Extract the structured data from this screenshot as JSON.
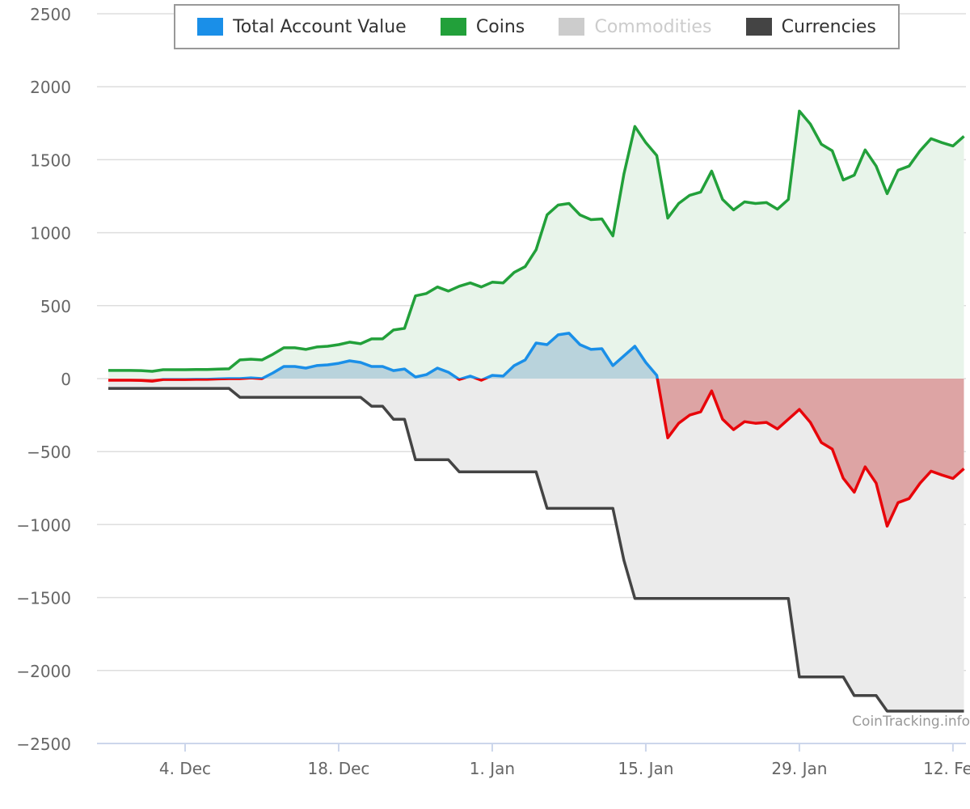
{
  "chart_data": {
    "type": "area",
    "title": "",
    "xlabel": "",
    "ylabel": "",
    "ylim": [
      -2500,
      2500
    ],
    "yticks": [
      2500,
      2000,
      1500,
      1000,
      500,
      0,
      -500,
      -1000,
      -1500,
      -2000,
      -2500
    ],
    "ytick_labels": [
      "2500",
      "2000",
      "1500",
      "1000",
      "500",
      "0",
      "−500",
      "−1000",
      "−1500",
      "−2000",
      "−2500"
    ],
    "x_start": "27 Nov",
    "x_interval_days": 1,
    "xticks": [
      {
        "label": "4. Dec",
        "day": 7
      },
      {
        "label": "18. Dec",
        "day": 21
      },
      {
        "label": "1. Jan",
        "day": 35
      },
      {
        "label": "15. Jan",
        "day": 49
      },
      {
        "label": "29. Jan",
        "day": 63
      },
      {
        "label": "12. Feb",
        "day": 77
      }
    ],
    "grid": true,
    "legend_position": "top",
    "series": [
      {
        "name": "Total Account Value",
        "color": "#1a8fe8",
        "negative_color": "#e8050a",
        "visible": true,
        "values": [
          -11,
          -11,
          -11,
          -12,
          -17,
          -6,
          -6,
          -6,
          -5,
          -5,
          -2,
          0,
          0,
          5,
          0,
          39,
          83,
          83,
          72,
          89,
          94,
          105,
          122,
          111,
          83,
          83,
          55,
          66,
          11,
          27,
          72,
          44,
          -6,
          17,
          -11,
          22,
          17,
          89,
          128,
          244,
          233,
          300,
          311,
          233,
          200,
          205,
          89,
          156,
          222,
          111,
          22,
          -406,
          -306,
          -250,
          -228,
          -84,
          -278,
          -350,
          -295,
          -306,
          -300,
          -345,
          -278,
          -211,
          -300,
          -438,
          -483,
          -683,
          -778,
          -605,
          -716,
          -1011,
          -850,
          -822,
          -717,
          -634,
          -661,
          -684,
          -617
        ]
      },
      {
        "name": "Coins",
        "color": "#22a03a",
        "visible": true,
        "values": [
          56,
          56,
          56,
          55,
          50,
          61,
          61,
          61,
          62,
          62,
          65,
          67,
          128,
          133,
          128,
          167,
          211,
          211,
          200,
          217,
          222,
          233,
          250,
          239,
          272,
          272,
          333,
          344,
          567,
          583,
          628,
          600,
          633,
          656,
          628,
          661,
          656,
          728,
          767,
          883,
          1122,
          1189,
          1200,
          1122,
          1089,
          1094,
          978,
          1400,
          1728,
          1617,
          1528,
          1100,
          1200,
          1256,
          1278,
          1422,
          1228,
          1156,
          1211,
          1200,
          1206,
          1161,
          1228,
          1833,
          1744,
          1606,
          1561,
          1361,
          1394,
          1567,
          1456,
          1267,
          1428,
          1456,
          1561,
          1644,
          1617,
          1594,
          1661
        ]
      },
      {
        "name": "Commodities",
        "color": "#cccccc",
        "visible": false,
        "values": []
      },
      {
        "name": "Currencies",
        "color": "#444444",
        "visible": true,
        "values": [
          -67,
          -67,
          -67,
          -67,
          -67,
          -67,
          -67,
          -67,
          -67,
          -67,
          -67,
          -67,
          -128,
          -128,
          -128,
          -128,
          -128,
          -128,
          -128,
          -128,
          -128,
          -128,
          -128,
          -128,
          -189,
          -189,
          -278,
          -278,
          -556,
          -556,
          -556,
          -556,
          -639,
          -639,
          -639,
          -639,
          -639,
          -639,
          -639,
          -639,
          -889,
          -889,
          -889,
          -889,
          -889,
          -889,
          -889,
          -1244,
          -1506,
          -1506,
          -1506,
          -1506,
          -1506,
          -1506,
          -1506,
          -1506,
          -1506,
          -1506,
          -1506,
          -1506,
          -1506,
          -1506,
          -1506,
          -2044,
          -2044,
          -2044,
          -2044,
          -2044,
          -2172,
          -2172,
          -2172,
          -2278,
          -2278,
          -2278,
          -2278,
          -2278,
          -2278,
          -2278,
          -2278
        ]
      }
    ]
  },
  "legend": {
    "items": [
      {
        "label": "Total Account Value",
        "color": "#1a8fe8"
      },
      {
        "label": "Coins",
        "color": "#22a03a"
      },
      {
        "label": "Commodities",
        "color": "#cccccc"
      },
      {
        "label": "Currencies",
        "color": "#444444"
      }
    ]
  },
  "watermark": "CoinTracking.info"
}
